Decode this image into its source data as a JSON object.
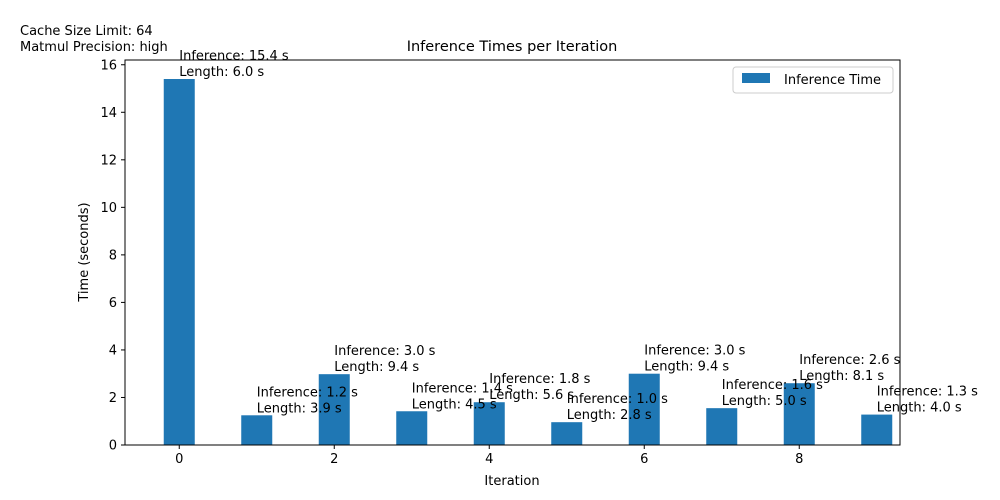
{
  "notes": {
    "cache": "Cache Size Limit: 64",
    "precision": "Matmul Precision: high"
  },
  "colors": {
    "bar": "#1f77b4"
  },
  "chart_data": {
    "type": "bar",
    "title": "Inference Times per Iteration",
    "xlabel": "Iteration",
    "ylabel": "Time (seconds)",
    "x": [
      0,
      1,
      2,
      3,
      4,
      5,
      6,
      7,
      8,
      9
    ],
    "xticks": [
      "0",
      "2",
      "4",
      "6",
      "8"
    ],
    "yticks": [
      "0",
      "2",
      "4",
      "6",
      "8",
      "10",
      "12",
      "14",
      "16"
    ],
    "xlim": [
      -0.7,
      9.3
    ],
    "ylim": [
      0,
      16.2
    ],
    "grid": false,
    "legend_position": "top-right",
    "series": [
      {
        "name": "Inference Time",
        "values": [
          15.4,
          1.25,
          2.98,
          1.42,
          1.8,
          0.96,
          3.0,
          1.55,
          2.6,
          1.28
        ],
        "labels_inference": [
          "Inference: 15.4 s",
          "Inference: 1.2 s",
          "Inference: 3.0 s",
          "Inference: 1.4 s",
          "Inference: 1.8 s",
          "Inference: 1.0 s",
          "Inference: 3.0 s",
          "Inference: 1.6 s",
          "Inference: 2.6 s",
          "Inference: 1.3 s"
        ],
        "labels_length": [
          "Length: 6.0 s",
          "Length: 3.9 s",
          "Length: 9.4 s",
          "Length: 4.5 s",
          "Length: 5.6 s",
          "Length: 2.8 s",
          "Length: 9.4 s",
          "Length: 5.0 s",
          "Length: 8.1 s",
          "Length: 4.0 s"
        ]
      }
    ]
  }
}
